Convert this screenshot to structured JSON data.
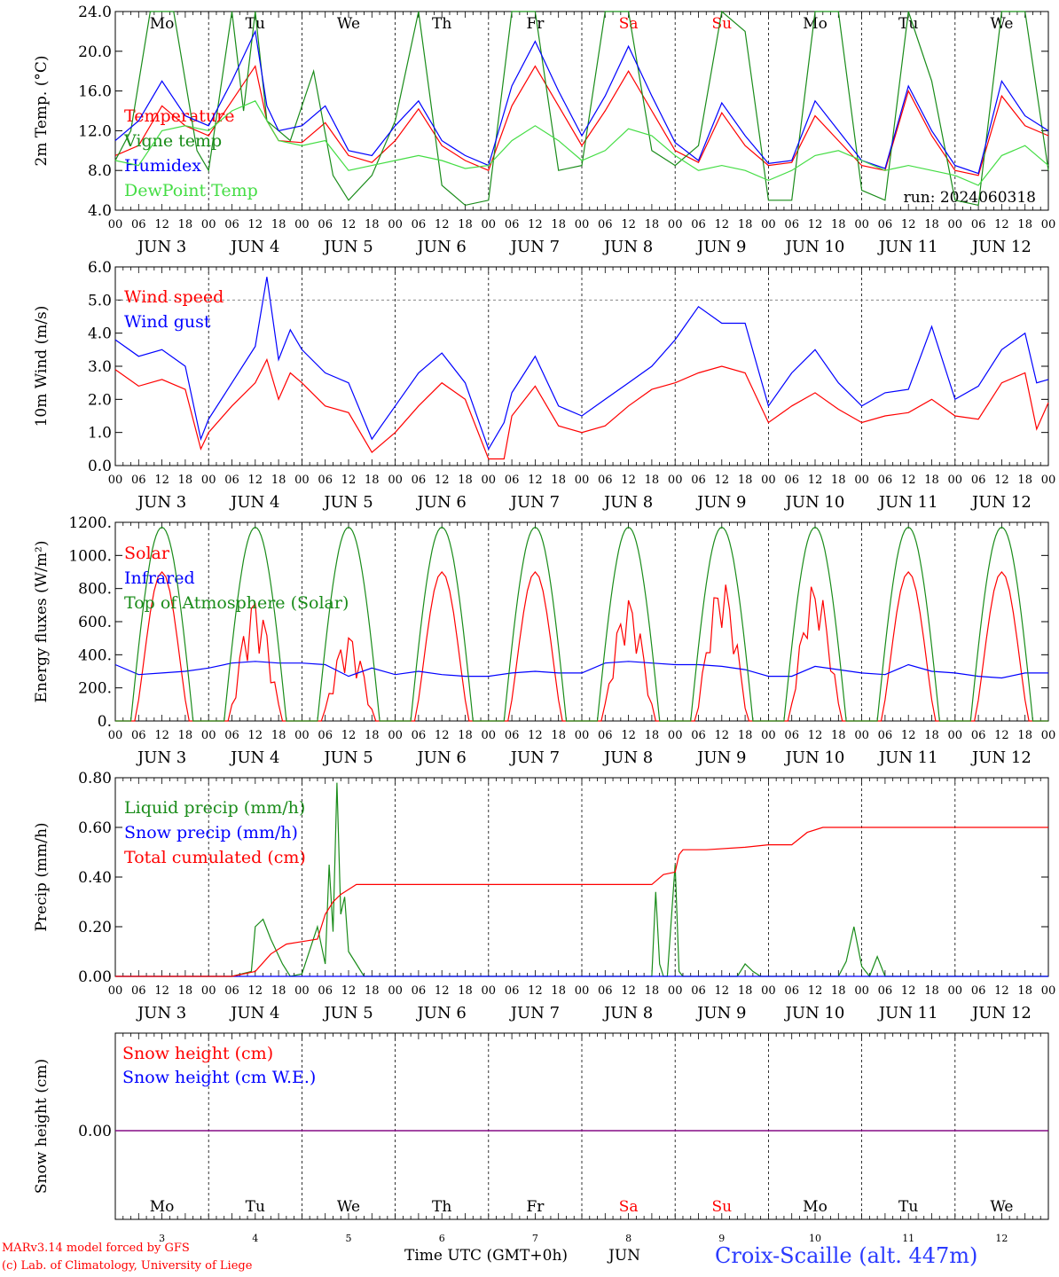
{
  "colors": {
    "red": "#ff0000",
    "green": "#1a8c1a",
    "lightgreen": "#44dd44",
    "blue": "#0000ff",
    "black": "#000000",
    "grey": "#555555",
    "purple": "#7f007f"
  },
  "days": [
    "Mo",
    "Tu",
    "We",
    "Th",
    "Fr",
    "Sa",
    "Su",
    "Mo",
    "Tu",
    "We"
  ],
  "day_colors": [
    "black",
    "black",
    "black",
    "black",
    "black",
    "red",
    "red",
    "black",
    "black",
    "black"
  ],
  "date_labels": [
    "JUN  3",
    "JUN  4",
    "JUN  5",
    "JUN  6",
    "JUN  7",
    "JUN  8",
    "JUN  9",
    "JUN 10",
    "JUN 11",
    "JUN 12"
  ],
  "hour_labels": [
    "00",
    "06",
    "12",
    "18"
  ],
  "day_numbers": [
    "3",
    "4",
    "5",
    "6",
    "7",
    "8",
    "9",
    "10",
    "11",
    "12"
  ],
  "run_label": "run: 2024060318",
  "footer": {
    "model": "MARv3.14 model forced by GFS",
    "lab": "(c) Lab. of Climatology, University of Liege",
    "xaxis": "Time UTC (GMT+0h)",
    "month": "JUN",
    "station": "Croix-Scaille (alt. 447m)"
  },
  "chart_data": [
    {
      "type": "line",
      "ylabel": "2m Temp. (°C)",
      "ylim": [
        4,
        24
      ],
      "yticks": [
        "4.0",
        "8.0",
        "12.0",
        "16.0",
        "20.0",
        "24.0"
      ],
      "x_unit": "hours since 2024-06-03 00 UTC",
      "series": [
        {
          "name": "Temperature",
          "color": "red",
          "x": [
            0,
            6,
            12,
            18,
            24,
            30,
            36,
            39,
            42,
            48,
            54,
            60,
            66,
            72,
            78,
            84,
            90,
            96,
            102,
            108,
            114,
            120,
            126,
            132,
            138,
            144,
            150,
            156,
            162,
            168,
            174,
            180,
            186,
            192,
            198,
            204,
            210,
            216,
            222,
            228,
            234,
            240
          ],
          "y": [
            9.5,
            10.5,
            14.5,
            12.5,
            11.5,
            15.0,
            18.5,
            13.0,
            11.0,
            10.8,
            12.8,
            9.5,
            8.8,
            11.0,
            14.2,
            10.5,
            9.0,
            8.0,
            14.5,
            18.5,
            14.5,
            10.5,
            14.0,
            18.0,
            14.0,
            10.0,
            8.8,
            13.8,
            10.5,
            8.5,
            8.8,
            13.5,
            11.0,
            8.5,
            8.0,
            16.0,
            11.5,
            8.0,
            7.5,
            15.5,
            12.5,
            11.5
          ]
        },
        {
          "name": "Vigne temp",
          "color": "green",
          "x": [
            0,
            4,
            9,
            15,
            21,
            24,
            30,
            33,
            36,
            39,
            45,
            51,
            56,
            60,
            66,
            72,
            78,
            84,
            90,
            96,
            102,
            108,
            114,
            120,
            126,
            132,
            138,
            144,
            150,
            156,
            162,
            168,
            174,
            180,
            186,
            192,
            198,
            204,
            210,
            216,
            222,
            228,
            234,
            240
          ],
          "y": [
            9.0,
            12.0,
            24.0,
            24.0,
            10.0,
            8.0,
            24.0,
            14.0,
            24.0,
            13.0,
            11.0,
            18.0,
            7.5,
            5.0,
            7.5,
            13.0,
            24.0,
            6.5,
            4.5,
            5.0,
            24.0,
            24.0,
            8.0,
            8.5,
            24.0,
            24.0,
            10.0,
            8.5,
            10.5,
            24.0,
            22.0,
            5.0,
            5.0,
            24.0,
            24.0,
            6.0,
            5.0,
            24.0,
            17.0,
            5.0,
            4.5,
            24.0,
            24.0,
            8.0
          ]
        },
        {
          "name": "Humidex",
          "color": "blue",
          "x": [
            0,
            6,
            12,
            18,
            24,
            30,
            36,
            39,
            42,
            48,
            54,
            60,
            66,
            72,
            78,
            84,
            90,
            96,
            102,
            108,
            114,
            120,
            126,
            132,
            138,
            144,
            150,
            156,
            162,
            168,
            174,
            180,
            186,
            192,
            198,
            204,
            210,
            216,
            222,
            228,
            234,
            240
          ],
          "y": [
            11.0,
            13.0,
            17.0,
            13.5,
            12.5,
            17.0,
            22.0,
            14.5,
            12.0,
            12.5,
            14.5,
            10.0,
            9.5,
            12.5,
            15.0,
            11.0,
            9.5,
            8.5,
            16.5,
            21.0,
            16.0,
            11.5,
            15.5,
            20.5,
            15.5,
            10.8,
            9.0,
            14.8,
            11.5,
            8.7,
            9.0,
            15.0,
            12.0,
            9.0,
            8.2,
            16.5,
            12.0,
            8.5,
            7.7,
            17.0,
            13.5,
            12.0
          ]
        },
        {
          "name": "DewPoint Temp",
          "color": "lightgreen",
          "x": [
            0,
            6,
            12,
            18,
            24,
            30,
            36,
            42,
            48,
            54,
            60,
            66,
            72,
            78,
            84,
            90,
            96,
            102,
            108,
            114,
            120,
            126,
            132,
            138,
            144,
            150,
            156,
            162,
            168,
            174,
            180,
            186,
            192,
            198,
            204,
            210,
            216,
            222,
            228,
            234,
            240
          ],
          "y": [
            9.0,
            8.5,
            12.0,
            12.5,
            12.0,
            14.0,
            15.0,
            11.0,
            10.5,
            11.0,
            8.0,
            8.5,
            9.0,
            9.5,
            9.0,
            8.2,
            8.5,
            11.0,
            12.5,
            11.0,
            9.0,
            10.0,
            12.2,
            11.5,
            9.5,
            8.0,
            8.5,
            8.0,
            7.0,
            8.0,
            9.5,
            10.0,
            9.0,
            8.0,
            8.5,
            8.0,
            7.5,
            6.5,
            9.5,
            10.5,
            8.5
          ]
        }
      ]
    },
    {
      "type": "line",
      "ylabel": "10m Wind (m/s)",
      "ylim": [
        0,
        6
      ],
      "yticks": [
        "0.0",
        "1.0",
        "2.0",
        "3.0",
        "4.0",
        "5.0",
        "6.0"
      ],
      "x_unit": "hours since 2024-06-03 00 UTC",
      "series": [
        {
          "name": "Wind speed",
          "color": "red",
          "x": [
            0,
            6,
            12,
            18,
            22,
            24,
            30,
            36,
            39,
            42,
            45,
            48,
            54,
            60,
            66,
            72,
            78,
            84,
            90,
            96,
            100,
            102,
            108,
            114,
            120,
            126,
            132,
            138,
            144,
            150,
            156,
            162,
            168,
            174,
            180,
            186,
            192,
            198,
            204,
            210,
            216,
            222,
            228,
            234,
            237,
            240
          ],
          "y": [
            2.9,
            2.4,
            2.6,
            2.3,
            0.5,
            1.0,
            1.8,
            2.5,
            3.2,
            2.0,
            2.8,
            2.5,
            1.8,
            1.6,
            0.4,
            1.0,
            1.8,
            2.5,
            2.0,
            0.2,
            0.2,
            1.5,
            2.4,
            1.2,
            1.0,
            1.2,
            1.8,
            2.3,
            2.5,
            2.8,
            3.0,
            2.8,
            1.3,
            1.8,
            2.2,
            1.7,
            1.3,
            1.5,
            1.6,
            2.0,
            1.5,
            1.4,
            2.5,
            2.8,
            1.1,
            1.9
          ]
        },
        {
          "name": "Wind gust",
          "color": "blue",
          "x": [
            0,
            6,
            12,
            18,
            22,
            24,
            30,
            36,
            39,
            42,
            45,
            48,
            54,
            60,
            66,
            72,
            78,
            84,
            90,
            96,
            100,
            102,
            108,
            114,
            120,
            126,
            132,
            138,
            144,
            150,
            156,
            162,
            168,
            174,
            180,
            186,
            192,
            198,
            204,
            210,
            216,
            222,
            228,
            234,
            237,
            240
          ],
          "y": [
            3.8,
            3.3,
            3.5,
            3.0,
            0.8,
            1.4,
            2.5,
            3.6,
            5.7,
            3.2,
            4.1,
            3.5,
            2.8,
            2.5,
            0.8,
            1.8,
            2.8,
            3.4,
            2.5,
            0.5,
            1.3,
            2.2,
            3.3,
            1.8,
            1.5,
            2.0,
            2.5,
            3.0,
            3.8,
            4.8,
            4.3,
            4.3,
            1.8,
            2.8,
            3.5,
            2.5,
            1.8,
            2.2,
            2.3,
            4.2,
            2.0,
            2.4,
            3.5,
            4.0,
            2.5,
            2.6
          ]
        }
      ]
    },
    {
      "type": "line",
      "ylabel": "Energy fluxes (W/m²)",
      "ylim": [
        0,
        1200
      ],
      "yticks": [
        "0.",
        "200.",
        "400.",
        "600.",
        "800.",
        "1000.",
        "1200."
      ],
      "x_unit": "hours since 2024-06-03 00 UTC",
      "series": [
        {
          "name": "Solar",
          "color": "red",
          "peaks": [
            900,
            750,
            530,
            900,
            900,
            750,
            870,
            850,
            900,
            900
          ],
          "peak_hour": 12
        },
        {
          "name": "Infrared",
          "color": "blue",
          "x": [
            0,
            6,
            12,
            18,
            24,
            30,
            36,
            42,
            48,
            54,
            60,
            66,
            72,
            78,
            84,
            90,
            96,
            102,
            108,
            114,
            120,
            126,
            132,
            138,
            144,
            150,
            156,
            162,
            168,
            174,
            180,
            186,
            192,
            198,
            204,
            210,
            216,
            222,
            228,
            234,
            240
          ],
          "y": [
            340,
            280,
            290,
            300,
            320,
            350,
            360,
            350,
            350,
            340,
            270,
            320,
            280,
            300,
            280,
            270,
            270,
            290,
            300,
            290,
            290,
            350,
            360,
            350,
            340,
            340,
            330,
            310,
            270,
            270,
            330,
            310,
            290,
            280,
            340,
            300,
            290,
            270,
            260,
            290,
            290
          ]
        },
        {
          "name": "Top of Atmosphere (Solar)",
          "color": "green",
          "peak": 1170,
          "sunrise": 4,
          "sunset": 20
        }
      ]
    },
    {
      "type": "line",
      "ylabel": "Precip (mm/h)",
      "ylim": [
        0,
        0.8
      ],
      "yticks": [
        "0.00",
        "0.20",
        "0.40",
        "0.60",
        "0.80"
      ],
      "x_unit": "hours since 2024-06-03 00 UTC",
      "series": [
        {
          "name": "Liquid precip (mm/h)",
          "color": "green",
          "x": [
            0,
            30,
            35,
            36,
            38,
            40,
            43,
            45,
            48,
            52,
            54,
            55,
            56,
            57,
            58,
            59,
            60,
            62,
            64,
            66,
            68,
            138,
            139,
            140,
            141,
            142,
            144,
            145,
            146,
            147,
            150,
            160,
            162,
            164,
            166,
            168,
            186,
            188,
            190,
            192,
            194,
            196,
            198,
            200,
            202,
            240
          ],
          "y": [
            0,
            0,
            0.02,
            0.2,
            0.23,
            0.15,
            0.05,
            0,
            0.01,
            0.2,
            0.05,
            0.45,
            0.18,
            0.78,
            0.25,
            0.32,
            0.1,
            0.05,
            0,
            0,
            0,
            0,
            0.34,
            0.05,
            0,
            0,
            0.45,
            0.02,
            0,
            0,
            0,
            0,
            0.05,
            0.02,
            0,
            0,
            0,
            0.06,
            0.2,
            0.04,
            0,
            0.08,
            0,
            0,
            0,
            0
          ]
        },
        {
          "name": "Snow precip (mm/h)",
          "color": "blue",
          "x": [
            0,
            240
          ],
          "y": [
            0,
            0
          ]
        },
        {
          "name": "Total cumulated (cm)",
          "color": "red",
          "x": [
            0,
            30,
            36,
            40,
            44,
            48,
            52,
            54,
            56,
            58,
            60,
            62,
            138,
            141,
            144,
            145,
            146,
            152,
            162,
            168,
            174,
            178,
            182,
            240
          ],
          "y": [
            0,
            0,
            0.02,
            0.09,
            0.13,
            0.14,
            0.15,
            0.25,
            0.3,
            0.33,
            0.35,
            0.37,
            0.37,
            0.41,
            0.42,
            0.49,
            0.51,
            0.51,
            0.52,
            0.53,
            0.53,
            0.58,
            0.6,
            0.6
          ]
        }
      ]
    },
    {
      "type": "line",
      "ylabel": "Snow height (cm)",
      "yticks": [
        "0.00"
      ],
      "series": [
        {
          "name": "Snow height (cm)",
          "color": "red",
          "x": [
            0,
            240
          ],
          "y": [
            0,
            0
          ]
        },
        {
          "name": "Snow height (cm W.E.)",
          "color": "blue",
          "x": [
            0,
            240
          ],
          "y": [
            0,
            0
          ]
        }
      ]
    }
  ]
}
